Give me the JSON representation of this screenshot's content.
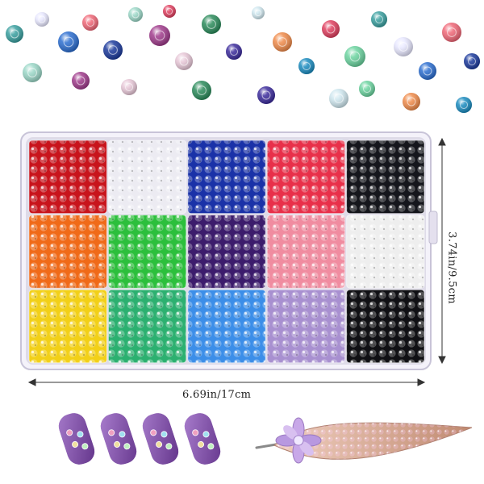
{
  "product": {
    "width_label": "6.69in/17cm",
    "height_label": "3.74in/9.5cm"
  },
  "compartments": [
    {
      "color": "#c8141c"
    },
    {
      "color": "#ecebf2"
    },
    {
      "color": "#1a32a8"
    },
    {
      "color": "#e8304a"
    },
    {
      "color": "#15161c"
    },
    {
      "color": "#f06a18"
    },
    {
      "color": "#2cbf3c"
    },
    {
      "color": "#3c1c6c"
    },
    {
      "color": "#f08ca0"
    },
    {
      "color": "#eeeeee"
    },
    {
      "color": "#f2d018"
    },
    {
      "color": "#2cb070"
    },
    {
      "color": "#3c8ee8"
    },
    {
      "color": "#a890d0"
    },
    {
      "color": "#101014"
    }
  ],
  "scattered_gems": [
    {
      "color": "#3aa0a0"
    },
    {
      "color": "#e8e8ff"
    },
    {
      "color": "#2c6ed0"
    },
    {
      "color": "#f06878"
    },
    {
      "color": "#1c3a9c"
    },
    {
      "color": "#9cd8c8"
    },
    {
      "color": "#a03c8c"
    },
    {
      "color": "#e8c8d8"
    },
    {
      "color": "#2c8c5c"
    },
    {
      "color": "#3c2c9c"
    },
    {
      "color": "#d0e8f0"
    },
    {
      "color": "#f08c4c"
    },
    {
      "color": "#1c8cc0"
    },
    {
      "color": "#e04060"
    },
    {
      "color": "#6cd4a0"
    }
  ],
  "nails": [
    {
      "color": "#7a4aa0"
    },
    {
      "color": "#8a5ab0"
    },
    {
      "color": "#7a4aa0"
    },
    {
      "color": "#8a5ab0"
    }
  ],
  "hair_clip": {
    "color": "#d8a890"
  }
}
